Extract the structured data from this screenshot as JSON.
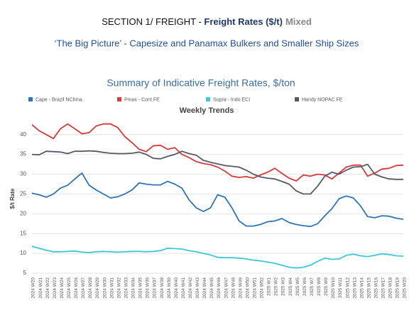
{
  "header": {
    "section": "SECTION 1/ FREIGHT - ",
    "topic": "Freight Rates ($/t)",
    "status": "Mixed",
    "subtitle": "‘The Big Picture’ - Capesize and Panamax Bulkers and Smaller Ship Sizes"
  },
  "chart_data": {
    "type": "line",
    "title": "Summary of Indicative Freight Rates, $/ton",
    "subtitle": "Weekly Trends",
    "y_label": "$/t Rate",
    "categories": [
      "2024 W20",
      "2024 W21",
      "2024 W22",
      "2024 W23",
      "2024 W24",
      "2024 W25",
      "2024 W26",
      "2024 W27",
      "2024 W28",
      "2024 W29",
      "2024 W30",
      "2024 W31",
      "2024 W32",
      "2024 W33",
      "2024 W34",
      "2024 W35",
      "2024 W36",
      "2024 W37",
      "2024 W38",
      "2024 W39",
      "2024 W40",
      "2024 W41",
      "2024 W42",
      "2024 W43",
      "2024 W44",
      "2024 W45",
      "2024 W46",
      "2024 W47",
      "2024 W48",
      "2024 W49",
      "2024 W50",
      "2024 W51",
      "2024 W52",
      "2025 W1",
      "2025 W2",
      "2025 W3",
      "2025 W4",
      "2025 W5",
      "2025 W6",
      "2025 W7",
      "2025 W8",
      "2025 W9",
      "2025 W10",
      "2025 W11",
      "2025 W12",
      "2025 W13",
      "2025 W14",
      "2025 W15",
      "2025 W16",
      "2025 W17",
      "2025 W18",
      "2025 W19",
      "2025 W20"
    ],
    "series": [
      {
        "name": "Cape - Brazil NChina",
        "color": "#2e75b6",
        "values": [
          25.2,
          24.8,
          24.2,
          25,
          26.5,
          27.2,
          28.8,
          30.3,
          27.2,
          26,
          25,
          24,
          24.3,
          25,
          26,
          27.8,
          27.5,
          27.3,
          27.3,
          28.2,
          27.5,
          26.5,
          23.5,
          21.5,
          20.6,
          21.5,
          24.8,
          24.2,
          21.5,
          18.2,
          16.9,
          16.9,
          17.3,
          18,
          18.2,
          18.8,
          17.8,
          17.3,
          17,
          16.8,
          17.5,
          19.5,
          21.3,
          23.8,
          24.5,
          24,
          22,
          19.3,
          19,
          19.5,
          19.4,
          18.9,
          18.6
        ]
      },
      {
        "name": "Pmax - Cont FE",
        "color": "#d9393b",
        "values": [
          42.5,
          41,
          40,
          39,
          41.5,
          42.7,
          41.5,
          40.2,
          40.5,
          42.2,
          42.7,
          42.7,
          41.8,
          39.5,
          38,
          36.3,
          35.7,
          37.2,
          37.3,
          36.3,
          36.7,
          35,
          34.2,
          33.2,
          32.7,
          32.4,
          31.8,
          30.8,
          29.5,
          29.2,
          29.4,
          29,
          29.8,
          30.5,
          31.5,
          30.2,
          29,
          28.3,
          29.8,
          29.5,
          30,
          29.8,
          28.8,
          30.3,
          31.8,
          32.3,
          32.3,
          29.5,
          30.3,
          31.3,
          31.5,
          32.2,
          32.3
        ]
      },
      {
        "name": "Supra - Indo ECI",
        "color": "#3cc8d8",
        "values": [
          11.8,
          11.3,
          10.8,
          10.4,
          10.4,
          10.5,
          10.6,
          10.3,
          10.2,
          10.4,
          10.5,
          10.4,
          10.3,
          10.4,
          10.5,
          10.5,
          10.4,
          10.5,
          10.7,
          11.3,
          11.2,
          11.1,
          10.7,
          10.4,
          10,
          9.6,
          9,
          8.9,
          8.9,
          8.8,
          8.6,
          8.3,
          8.1,
          7.8,
          7.5,
          7,
          6.5,
          6.3,
          6.5,
          7,
          8,
          8.8,
          8.5,
          8.6,
          9.5,
          9.8,
          9.4,
          9.2,
          9.5,
          9.9,
          9.7,
          9.4,
          9.3
        ]
      },
      {
        "name": "Handy NOPAC FE",
        "color": "#555a66",
        "values": [
          35,
          34.9,
          35.8,
          35.7,
          35.6,
          35.2,
          35.8,
          35.8,
          35.9,
          35.8,
          35.5,
          35.3,
          35.2,
          35.2,
          35.3,
          35.6,
          35,
          34,
          33.9,
          34.5,
          35,
          35.8,
          35.2,
          34.8,
          33.5,
          33,
          32.6,
          32.2,
          32,
          31.8,
          31,
          30,
          29.3,
          29,
          28.8,
          28.2,
          27.5,
          25.8,
          25,
          25,
          27,
          29.5,
          30.5,
          30,
          31,
          31.8,
          31.9,
          32.5,
          30,
          29.3,
          28.8,
          28.7,
          28.7
        ]
      }
    ],
    "ylim": [
      5,
      43
    ],
    "yticks": [
      5,
      10,
      15,
      20,
      25,
      30,
      35,
      40
    ],
    "grid": true
  }
}
